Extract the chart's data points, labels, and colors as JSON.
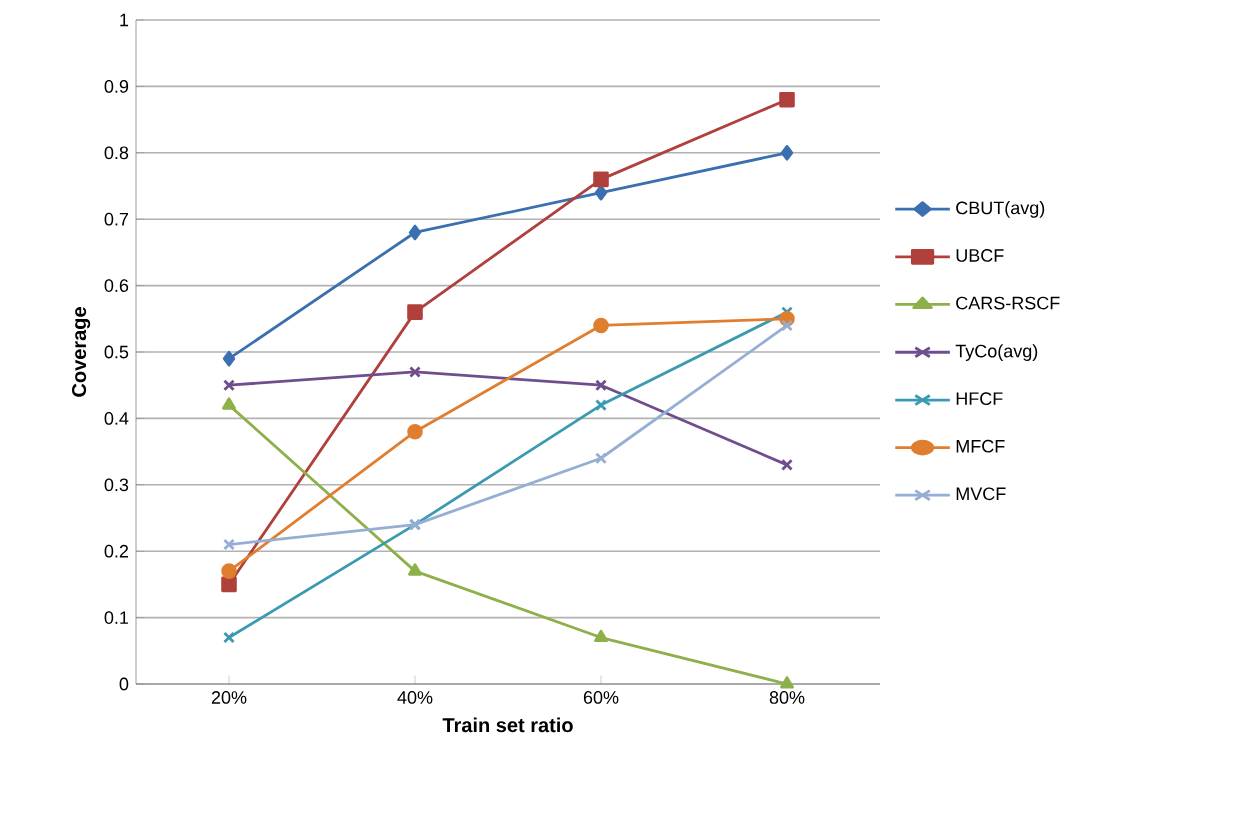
{
  "chart_data": {
    "type": "line",
    "xlabel": "Train set ratio",
    "ylabel": "Coverage",
    "categories": [
      "20%",
      "40%",
      "60%",
      "80%"
    ],
    "series": [
      {
        "name": "CBUT(avg)",
        "color": "#3a6fb0",
        "marker": "diamond",
        "values": [
          0.49,
          0.68,
          0.74,
          0.8
        ]
      },
      {
        "name": "UBCF",
        "color": "#b0403c",
        "marker": "square",
        "values": [
          0.15,
          0.56,
          0.76,
          0.88
        ]
      },
      {
        "name": "CARS-RSCF",
        "color": "#8db04a",
        "marker": "triangle",
        "values": [
          0.42,
          0.17,
          0.07,
          0.0
        ]
      },
      {
        "name": "TyCo(avg)",
        "color": "#6f4e8e",
        "marker": "cross",
        "values": [
          0.45,
          0.47,
          0.45,
          0.33
        ]
      },
      {
        "name": "HFCF",
        "color": "#3a9ab0",
        "marker": "cross",
        "values": [
          0.07,
          0.24,
          0.42,
          0.56
        ]
      },
      {
        "name": "MFCF",
        "color": "#e07e30",
        "marker": "circle",
        "values": [
          0.17,
          0.38,
          0.54,
          0.55
        ]
      },
      {
        "name": "MVCF",
        "color": "#94aed4",
        "marker": "cross",
        "values": [
          0.21,
          0.24,
          0.34,
          0.54
        ]
      }
    ],
    "ylim": [
      0,
      1
    ],
    "yticks": [
      0,
      0.1,
      0.2,
      0.3,
      0.4,
      0.5,
      0.6,
      0.7,
      0.8,
      0.9,
      1
    ],
    "grid": "y",
    "legend": "right"
  }
}
